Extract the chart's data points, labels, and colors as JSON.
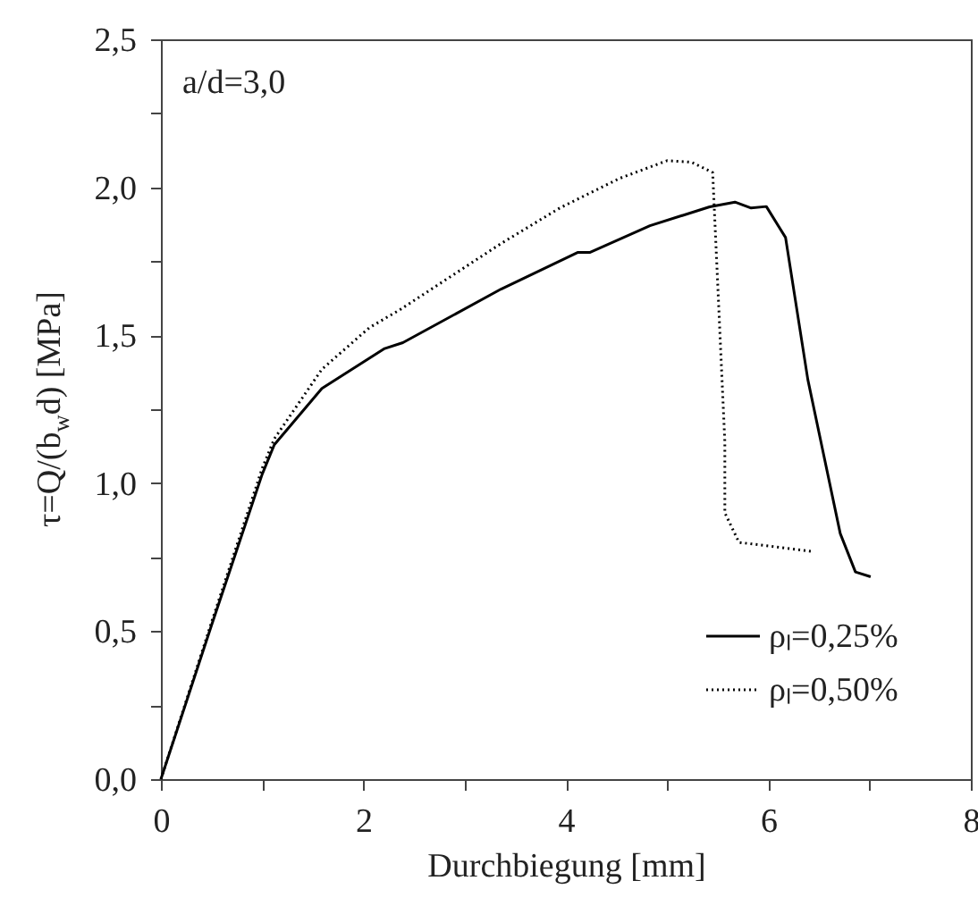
{
  "chart_data": {
    "type": "line",
    "xlabel": "Durchbiegung [mm]",
    "ylabel": "τ=Q/(b$_{w}$d) [MPa]",
    "annotations": [
      "a/d=3,0"
    ],
    "xlim": [
      0,
      8
    ],
    "xticks": [
      0,
      {
        "value": 1,
        "label": null
      },
      2,
      {
        "value": 3,
        "label": null
      },
      4,
      {
        "value": 5,
        "label": null
      },
      6,
      {
        "value": 7,
        "label": null
      },
      8
    ],
    "ylim": [
      0,
      2.5
    ],
    "yticks": [
      {
        "value": 0,
        "label": "0,0"
      },
      {
        "value": 0.25,
        "label": null
      },
      {
        "value": 0.5,
        "label": "0,5"
      },
      {
        "value": 0.75,
        "label": null
      },
      {
        "value": 1,
        "label": "1,0"
      },
      {
        "value": 1.25,
        "label": null
      },
      {
        "value": 1.5,
        "label": "1,5"
      },
      {
        "value": 1.75,
        "label": null
      },
      {
        "value": 2,
        "label": "2,0"
      },
      {
        "value": 2.25,
        "label": null
      },
      {
        "value": 2.5,
        "label": "2,5"
      }
    ],
    "grid": false,
    "legend": "bottom right",
    "marker": "none",
    "series": [
      {
        "name": "ρₗ=0,25%",
        "color": "#000000",
        "line_style": "solid",
        "x": [
          0,
          0.5,
          1.0,
          1.12,
          1.59,
          2.21,
          2.39,
          3.36,
          4.12,
          4.24,
          4.83,
          5.42,
          5.67,
          5.83,
          5.98,
          6.17,
          6.39,
          6.71,
          6.86,
          7.01
        ],
        "values": [
          0,
          0.52,
          1.03,
          1.13,
          1.32,
          1.455,
          1.475,
          1.656,
          1.78,
          1.78,
          1.87,
          1.934,
          1.95,
          1.93,
          1.935,
          1.83,
          1.35,
          0.83,
          0.7,
          0.684
        ]
      },
      {
        "name": "ρₗ=0,50%",
        "color": "#000000",
        "line_style": "dotted",
        "x": [
          0,
          0.5,
          1.0,
          1.12,
          1.59,
          2.06,
          2.36,
          3.36,
          3.94,
          4.53,
          5.0,
          5.24,
          5.45,
          5.57,
          5.57,
          5.71,
          6.42
        ],
        "values": [
          0,
          0.53,
          1.05,
          1.15,
          1.385,
          1.526,
          1.586,
          1.81,
          1.93,
          2.03,
          2.09,
          2.085,
          2.05,
          1.14,
          0.9,
          0.8,
          0.77
        ]
      }
    ]
  }
}
